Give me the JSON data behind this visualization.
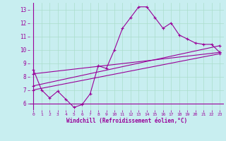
{
  "bg_color": "#c8eef0",
  "line_color": "#990099",
  "grid_color": "#aaddcc",
  "xlabel": "Windchill (Refroidissement éolien,°C)",
  "xlim": [
    -0.5,
    23.5
  ],
  "ylim": [
    5.5,
    13.5
  ],
  "yticks": [
    6,
    7,
    8,
    9,
    10,
    11,
    12,
    13
  ],
  "xticks": [
    0,
    1,
    2,
    3,
    4,
    5,
    6,
    7,
    8,
    9,
    10,
    11,
    12,
    13,
    14,
    15,
    16,
    17,
    18,
    19,
    20,
    21,
    22,
    23
  ],
  "main_x": [
    0,
    1,
    2,
    3,
    4,
    5,
    6,
    7,
    8,
    9,
    10,
    11,
    12,
    13,
    14,
    15,
    16,
    17,
    18,
    19,
    20,
    21,
    22,
    23
  ],
  "main_y": [
    8.5,
    7.0,
    6.4,
    6.9,
    6.3,
    5.7,
    5.9,
    6.7,
    8.8,
    8.6,
    10.0,
    11.6,
    12.4,
    13.2,
    13.2,
    12.4,
    11.6,
    12.0,
    11.1,
    10.8,
    10.5,
    10.4,
    10.4,
    9.8
  ],
  "line2_x": [
    0,
    23
  ],
  "line2_y": [
    8.2,
    9.8
  ],
  "line3_x": [
    0,
    23
  ],
  "line3_y": [
    7.3,
    10.3
  ],
  "line4_x": [
    0,
    23
  ],
  "line4_y": [
    7.0,
    9.7
  ]
}
